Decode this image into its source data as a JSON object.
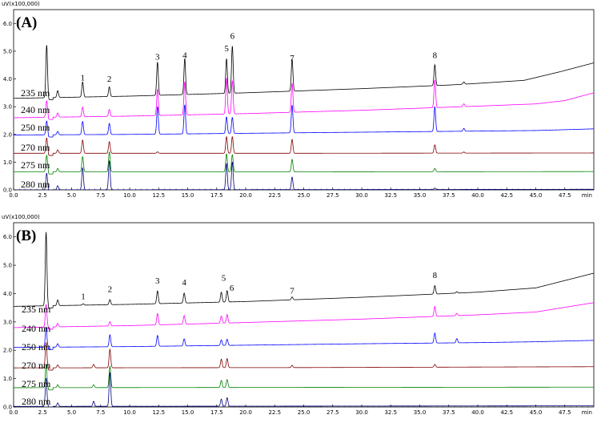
{
  "chart_data": [
    {
      "type": "line",
      "panel_label": "(A)",
      "y_unit_label": "uV(x100,000)",
      "x_unit_label": "min",
      "xlim": [
        0,
        50
      ],
      "ylim": [
        0,
        6.5
      ],
      "x_ticks": [
        "0.0",
        "2.5",
        "5.0",
        "7.5",
        "10.0",
        "12.5",
        "15.0",
        "17.5",
        "20.0",
        "22.5",
        "25.0",
        "27.5",
        "30.0",
        "32.5",
        "35.0",
        "37.5",
        "40.0",
        "42.5",
        "45.0",
        "47.5"
      ],
      "y_ticks": [
        "0.0",
        "1.0",
        "2.0",
        "3.0",
        "4.0",
        "5.0",
        "6.0"
      ],
      "series": [
        {
          "name": "235 nm",
          "color": "#000000",
          "baseline": [
            [
              0,
              3.3
            ],
            [
              10,
              3.38
            ],
            [
              20,
              3.5
            ],
            [
              30,
              3.65
            ],
            [
              37.5,
              3.78
            ],
            [
              40,
              3.84
            ],
            [
              44,
              3.95
            ],
            [
              47,
              4.25
            ],
            [
              50,
              4.58
            ]
          ],
          "peaks": [
            [
              2.85,
              1.9
            ],
            [
              3.8,
              0.25
            ],
            [
              5.95,
              0.55
            ],
            [
              8.25,
              0.35
            ],
            [
              12.4,
              1.2
            ],
            [
              14.75,
              1.3
            ],
            [
              18.35,
              1.25
            ],
            [
              18.85,
              1.7
            ],
            [
              24.0,
              1.15
            ],
            [
              36.3,
              0.75
            ],
            [
              38.8,
              0.08
            ]
          ]
        },
        {
          "name": "240 nm",
          "color": "#ff00ff",
          "baseline": [
            [
              0,
              2.6
            ],
            [
              10,
              2.66
            ],
            [
              20,
              2.75
            ],
            [
              30,
              2.87
            ],
            [
              40,
              3.02
            ],
            [
              45,
              3.1
            ],
            [
              47.5,
              3.22
            ],
            [
              50,
              3.5
            ]
          ],
          "peaks": [
            [
              2.85,
              0.6
            ],
            [
              3.8,
              0.15
            ],
            [
              5.95,
              0.35
            ],
            [
              8.25,
              0.25
            ],
            [
              12.4,
              0.95
            ],
            [
              14.75,
              1.2
            ],
            [
              18.35,
              1.3
            ],
            [
              18.85,
              1.2
            ],
            [
              24.0,
              1.05
            ],
            [
              36.3,
              1.0
            ],
            [
              38.8,
              0.1
            ]
          ]
        },
        {
          "name": "250 nm",
          "color": "#0000ff",
          "baseline": [
            [
              0,
              1.98
            ],
            [
              10,
              2.0
            ],
            [
              20,
              2.04
            ],
            [
              30,
              2.08
            ],
            [
              40,
              2.12
            ],
            [
              45,
              2.14
            ],
            [
              50,
              2.2
            ]
          ],
          "peaks": [
            [
              2.85,
              0.5
            ],
            [
              3.8,
              0.12
            ],
            [
              5.95,
              0.48
            ],
            [
              8.25,
              0.4
            ],
            [
              12.4,
              1.0
            ],
            [
              14.75,
              1.05
            ],
            [
              18.35,
              0.6
            ],
            [
              18.85,
              0.58
            ],
            [
              24.0,
              1.0
            ],
            [
              36.3,
              0.9
            ],
            [
              38.8,
              0.1
            ]
          ]
        },
        {
          "name": "270 nm",
          "color": "#800000",
          "baseline": [
            [
              0,
              1.32
            ],
            [
              25,
              1.32
            ],
            [
              50,
              1.33
            ]
          ],
          "peaks": [
            [
              2.85,
              0.55
            ],
            [
              3.8,
              0.12
            ],
            [
              5.95,
              0.48
            ],
            [
              8.25,
              0.42
            ],
            [
              12.4,
              0.05
            ],
            [
              18.35,
              0.6
            ],
            [
              18.85,
              0.6
            ],
            [
              24.0,
              0.5
            ],
            [
              36.3,
              0.3
            ],
            [
              38.8,
              0.04
            ]
          ]
        },
        {
          "name": "275 nm",
          "color": "#008000",
          "baseline": [
            [
              0,
              0.65
            ],
            [
              25,
              0.65
            ],
            [
              50,
              0.66
            ]
          ],
          "peaks": [
            [
              2.85,
              0.6
            ],
            [
              3.8,
              0.12
            ],
            [
              5.95,
              0.55
            ],
            [
              8.25,
              0.72
            ],
            [
              18.35,
              0.65
            ],
            [
              18.85,
              0.62
            ],
            [
              24.0,
              0.45
            ],
            [
              36.3,
              0.12
            ]
          ]
        },
        {
          "name": "280 nm",
          "color": "#000080",
          "baseline": [
            [
              0,
              0.0
            ],
            [
              25,
              0.01
            ],
            [
              50,
              0.02
            ]
          ],
          "peaks": [
            [
              2.85,
              0.6
            ],
            [
              3.8,
              0.15
            ],
            [
              5.95,
              0.8
            ],
            [
              8.25,
              1.05
            ],
            [
              18.35,
              0.95
            ],
            [
              18.85,
              1.0
            ],
            [
              24.0,
              0.45
            ],
            [
              36.3,
              0.05
            ]
          ]
        }
      ],
      "annotations": [
        {
          "text": "1",
          "x": 5.95,
          "y": 3.95
        },
        {
          "text": "2",
          "x": 8.25,
          "y": 3.9
        },
        {
          "text": "3",
          "x": 12.4,
          "y": 4.7
        },
        {
          "text": "4",
          "x": 14.75,
          "y": 4.75
        },
        {
          "text": "5",
          "x": 18.35,
          "y": 5.0
        },
        {
          "text": "6",
          "x": 18.85,
          "y": 5.45
        },
        {
          "text": "7",
          "x": 24.0,
          "y": 4.65
        },
        {
          "text": "8",
          "x": 36.3,
          "y": 4.75
        }
      ]
    },
    {
      "type": "line",
      "panel_label": "(B)",
      "y_unit_label": "uV(x100,000)",
      "x_unit_label": "min",
      "xlim": [
        0,
        50
      ],
      "ylim": [
        0,
        6.5
      ],
      "x_ticks": [
        "0.0",
        "2.5",
        "5.0",
        "7.5",
        "10.0",
        "12.5",
        "15.0",
        "17.5",
        "20.0",
        "22.5",
        "25.0",
        "27.5",
        "30.0",
        "32.5",
        "35.0",
        "37.5",
        "40.0",
        "42.5",
        "45.0",
        "47.5"
      ],
      "y_ticks": [
        "0.0",
        "1.0",
        "2.0",
        "3.0",
        "4.0",
        "5.0",
        "6.0"
      ],
      "series": [
        {
          "name": "235 nm",
          "color": "#000000",
          "baseline": [
            [
              0,
              3.55
            ],
            [
              10,
              3.62
            ],
            [
              20,
              3.72
            ],
            [
              30,
              3.87
            ],
            [
              40,
              4.05
            ],
            [
              45,
              4.2
            ],
            [
              50,
              4.72
            ]
          ],
          "peaks": [
            [
              2.8,
              2.6
            ],
            [
              3.8,
              0.2
            ],
            [
              6.0,
              0.05
            ],
            [
              8.3,
              0.18
            ],
            [
              12.4,
              0.45
            ],
            [
              14.7,
              0.35
            ],
            [
              17.9,
              0.35
            ],
            [
              18.4,
              0.4
            ],
            [
              24.0,
              0.1
            ],
            [
              36.3,
              0.3
            ],
            [
              38.2,
              0.05
            ]
          ]
        },
        {
          "name": "240 nm",
          "color": "#ff00ff",
          "baseline": [
            [
              0,
              2.8
            ],
            [
              10,
              2.87
            ],
            [
              20,
              2.98
            ],
            [
              30,
              3.1
            ],
            [
              40,
              3.25
            ],
            [
              45,
              3.35
            ],
            [
              50,
              3.68
            ]
          ],
          "peaks": [
            [
              2.8,
              0.8
            ],
            [
              3.8,
              0.12
            ],
            [
              8.3,
              0.15
            ],
            [
              12.4,
              0.4
            ],
            [
              14.7,
              0.3
            ],
            [
              17.9,
              0.25
            ],
            [
              18.4,
              0.3
            ],
            [
              36.3,
              0.35
            ],
            [
              38.2,
              0.08
            ]
          ]
        },
        {
          "name": "250 nm",
          "color": "#0000ff",
          "baseline": [
            [
              0,
              2.1
            ],
            [
              10,
              2.13
            ],
            [
              20,
              2.18
            ],
            [
              30,
              2.23
            ],
            [
              40,
              2.27
            ],
            [
              45,
              2.3
            ],
            [
              50,
              2.35
            ]
          ],
          "peaks": [
            [
              2.8,
              0.7
            ],
            [
              3.8,
              0.12
            ],
            [
              8.3,
              0.42
            ],
            [
              12.4,
              0.38
            ],
            [
              14.7,
              0.25
            ],
            [
              17.9,
              0.2
            ],
            [
              18.4,
              0.22
            ],
            [
              36.3,
              0.35
            ],
            [
              38.2,
              0.15
            ]
          ]
        },
        {
          "name": "270 nm",
          "color": "#800000",
          "baseline": [
            [
              0,
              1.38
            ],
            [
              25,
              1.39
            ],
            [
              50,
              1.42
            ]
          ],
          "peaks": [
            [
              2.8,
              0.9
            ],
            [
              3.8,
              0.1
            ],
            [
              6.9,
              0.12
            ],
            [
              8.3,
              0.65
            ],
            [
              17.9,
              0.3
            ],
            [
              18.4,
              0.32
            ],
            [
              24.0,
              0.08
            ],
            [
              36.3,
              0.1
            ]
          ]
        },
        {
          "name": "275 nm",
          "color": "#008000",
          "baseline": [
            [
              0,
              0.68
            ],
            [
              25,
              0.69
            ],
            [
              50,
              0.7
            ]
          ],
          "peaks": [
            [
              2.8,
              0.8
            ],
            [
              3.8,
              0.1
            ],
            [
              6.9,
              0.1
            ],
            [
              8.3,
              0.75
            ],
            [
              17.9,
              0.25
            ],
            [
              18.4,
              0.28
            ]
          ]
        },
        {
          "name": "280 nm",
          "color": "#000080",
          "baseline": [
            [
              0,
              0.02
            ],
            [
              25,
              0.03
            ],
            [
              50,
              0.04
            ]
          ],
          "peaks": [
            [
              2.8,
              1.0
            ],
            [
              3.8,
              0.12
            ],
            [
              6.9,
              0.18
            ],
            [
              8.3,
              1.2
            ],
            [
              17.9,
              0.25
            ],
            [
              18.4,
              0.3
            ]
          ]
        }
      ],
      "annotations": [
        {
          "text": "1",
          "x": 6.0,
          "y": 3.8
        },
        {
          "text": "2",
          "x": 8.3,
          "y": 4.05
        },
        {
          "text": "3",
          "x": 12.4,
          "y": 4.35
        },
        {
          "text": "4",
          "x": 14.7,
          "y": 4.3
        },
        {
          "text": "5",
          "x": 18.1,
          "y": 4.45
        },
        {
          "text": "6",
          "x": 18.8,
          "y": 4.1
        },
        {
          "text": "7",
          "x": 24.0,
          "y": 4.0
        },
        {
          "text": "8",
          "x": 36.3,
          "y": 4.55
        }
      ]
    }
  ]
}
